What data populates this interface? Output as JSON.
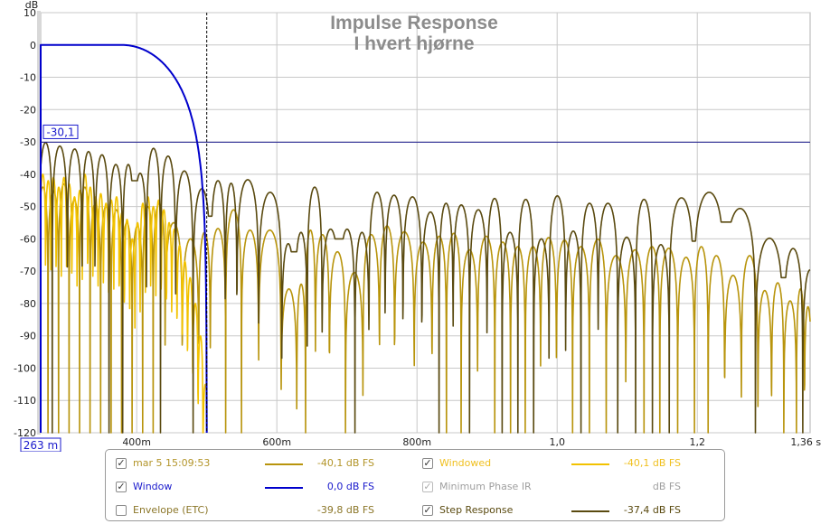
{
  "chart_data": {
    "type": "line",
    "title": "Impulse Response",
    "subtitle": "I hvert hjørne",
    "ylabel": "dB",
    "xlabel": "",
    "xlim": [
      0.263,
      1.361
    ],
    "ylim": [
      -120,
      10
    ],
    "grid": true,
    "y_ticks": [
      10,
      0,
      -10,
      -20,
      -30,
      -40,
      -50,
      -60,
      -70,
      -80,
      -90,
      -100,
      -110,
      -120
    ],
    "y_tick_labels": [
      "10",
      "0",
      "-10",
      "-20",
      "-30",
      "-40",
      "-50",
      "-60",
      "-70",
      "-80",
      "-90",
      "-100",
      "-110",
      "-120"
    ],
    "x_ticks": [
      0.4,
      0.6,
      0.8,
      1.0,
      1.2,
      1.36
    ],
    "x_tick_labels": [
      "400m",
      "600m",
      "800m",
      "1,0",
      "1,2",
      "1,36 s"
    ],
    "cursor_y_label": "-30,1",
    "cursor_y_value": -30.1,
    "cursor_x_label": "263 m",
    "cursor_x_value": 0.263,
    "marker_x_value": 0.5,
    "colors": {
      "grid": "#c8c8c8",
      "cursor": "#1a1a8c",
      "title": "#8c8c8c"
    },
    "series": [
      {
        "name": "mar 5 15:09:53",
        "color": "#b8940c",
        "peaks": [
          [
            0.266,
            -44
          ],
          [
            0.281,
            -45
          ],
          [
            0.296,
            -43
          ],
          [
            0.311,
            -48
          ],
          [
            0.326,
            -44
          ],
          [
            0.341,
            -49
          ],
          [
            0.356,
            -50
          ],
          [
            0.371,
            -51
          ],
          [
            0.386,
            -55
          ],
          [
            0.401,
            -56
          ],
          [
            0.416,
            -50
          ],
          [
            0.431,
            -49
          ],
          [
            0.45,
            -55
          ],
          [
            0.48,
            -60
          ],
          [
            0.497,
            -58
          ],
          [
            0.513,
            -56.8
          ],
          [
            0.541,
            -51
          ],
          [
            0.558,
            -57.3
          ],
          [
            0.59,
            -57.3
          ],
          [
            0.622,
            -75.5
          ],
          [
            0.635,
            -74
          ],
          [
            0.647,
            -57.3
          ],
          [
            0.663,
            -58.7
          ],
          [
            0.687,
            -64
          ],
          [
            0.709,
            -70.4
          ],
          [
            0.737,
            -58.7
          ],
          [
            0.756,
            -56
          ],
          [
            0.78,
            -57.8
          ],
          [
            0.812,
            -61
          ],
          [
            0.831,
            -59.2
          ],
          [
            0.853,
            -58.3
          ],
          [
            0.873,
            -63.4
          ],
          [
            0.9,
            -59.2
          ],
          [
            0.922,
            -61
          ],
          [
            0.945,
            -62.4
          ],
          [
            0.964,
            -62.4
          ],
          [
            0.989,
            -59.6
          ],
          [
            1.009,
            -60.4
          ],
          [
            1.035,
            -62.4
          ],
          [
            1.057,
            -60.1
          ],
          [
            1.083,
            -65.2
          ],
          [
            1.113,
            -63.4
          ],
          [
            1.135,
            -62.4
          ],
          [
            1.158,
            -62.9
          ],
          [
            1.186,
            -65.7
          ],
          [
            1.206,
            -62.4
          ],
          [
            1.225,
            -65.2
          ],
          [
            1.253,
            -71.3
          ],
          [
            1.273,
            -65.2
          ],
          [
            1.3,
            -76
          ],
          [
            1.312,
            -73.6
          ],
          [
            1.335,
            -79.2
          ],
          [
            1.348,
            -75.5
          ],
          [
            1.358,
            -81
          ]
        ]
      },
      {
        "name": "Windowed",
        "color": "#f2c200",
        "end": 0.5,
        "peaks": [
          [
            0.266,
            -40
          ],
          [
            0.274,
            -42
          ],
          [
            0.281,
            -41
          ],
          [
            0.289,
            -44
          ],
          [
            0.296,
            -41
          ],
          [
            0.304,
            -43
          ],
          [
            0.311,
            -47
          ],
          [
            0.319,
            -45
          ],
          [
            0.326,
            -40
          ],
          [
            0.334,
            -44
          ],
          [
            0.341,
            -47
          ],
          [
            0.349,
            -46
          ],
          [
            0.356,
            -49
          ],
          [
            0.364,
            -48
          ],
          [
            0.371,
            -47
          ],
          [
            0.379,
            -52
          ],
          [
            0.386,
            -54
          ],
          [
            0.394,
            -60
          ],
          [
            0.401,
            -55
          ],
          [
            0.409,
            -49
          ],
          [
            0.416,
            -47
          ],
          [
            0.424,
            -50
          ],
          [
            0.431,
            -48
          ],
          [
            0.439,
            -51
          ],
          [
            0.446,
            -55
          ],
          [
            0.454,
            -57
          ],
          [
            0.461,
            -62
          ],
          [
            0.469,
            -67
          ],
          [
            0.476,
            -72
          ],
          [
            0.484,
            -80
          ],
          [
            0.491,
            -90
          ],
          [
            0.498,
            -105
          ]
        ]
      },
      {
        "name": "Step Response",
        "color": "#5a4a10",
        "peaks": [
          [
            0.27,
            -30.2
          ],
          [
            0.289,
            -31.3
          ],
          [
            0.313,
            -32.2
          ],
          [
            0.331,
            -33
          ],
          [
            0.35,
            -34
          ],
          [
            0.371,
            -37
          ],
          [
            0.389,
            -37
          ],
          [
            0.403,
            -39.7,
            -42
          ],
          [
            0.425,
            -32
          ],
          [
            0.443,
            -34.4
          ],
          [
            0.468,
            -39
          ],
          [
            0.493,
            -44.5
          ],
          [
            0.518,
            -42,
            -53
          ],
          [
            0.535,
            -42.8
          ],
          [
            0.551,
            -41.7
          ],
          [
            0.597,
            -45.6
          ],
          [
            0.617,
            -61.5
          ],
          [
            0.634,
            -58,
            -64
          ],
          [
            0.653,
            -44
          ],
          [
            0.676,
            -57
          ],
          [
            0.702,
            -57,
            -60
          ],
          [
            0.721,
            -58
          ],
          [
            0.742,
            -45.6
          ],
          [
            0.767,
            -46.5
          ],
          [
            0.793,
            -47
          ],
          [
            0.821,
            -51.7
          ],
          [
            0.842,
            -49
          ],
          [
            0.861,
            -49.5
          ],
          [
            0.889,
            -51
          ],
          [
            0.911,
            -47.5
          ],
          [
            0.932,
            -58
          ],
          [
            0.956,
            -47.8
          ],
          [
            0.977,
            -60
          ],
          [
            1.0,
            -46.7
          ],
          [
            1.024,
            -57.6
          ],
          [
            1.044,
            -49
          ],
          [
            1.073,
            -49
          ],
          [
            1.1,
            -59.5
          ],
          [
            1.124,
            -47.8
          ],
          [
            1.148,
            -61.8
          ],
          [
            1.172,
            -47.3
          ],
          [
            1.218,
            -45.6,
            -60.7
          ],
          [
            1.26,
            -50.6,
            -54.8
          ],
          [
            1.306,
            -59.8
          ],
          [
            1.34,
            -63,
            -72
          ],
          [
            1.361,
            -69.6
          ]
        ]
      },
      {
        "name": "Window",
        "color": "#0000cc",
        "flat_db": 0,
        "taper_start": 0.379,
        "taper_end": 0.5
      }
    ]
  },
  "legend": {
    "items": [
      {
        "label": "mar 5 15:09:53",
        "value": "-40,1 dB FS",
        "checked": true,
        "text_color": "#b3952a",
        "line_color": "#b8940c"
      },
      {
        "label": "Window",
        "value": "0,0 dB FS",
        "checked": true,
        "text_color": "#1a1acc",
        "line_color": "#0000cc"
      },
      {
        "label": "Envelope (ETC)",
        "value": "-39,8 dB FS",
        "checked": false,
        "text_color": "#8b7628",
        "line_color": ""
      },
      {
        "label": "Windowed",
        "value": "-40,1 dB FS",
        "checked": true,
        "text_color": "#f0c020",
        "line_color": "#f2c200"
      },
      {
        "label": "Minimum Phase IR",
        "value": "dB FS",
        "checked": true,
        "disabled": true,
        "text_color": "#a0a0a0",
        "line_color": ""
      },
      {
        "label": "Step Response",
        "value": "-37,4 dB FS",
        "checked": true,
        "text_color": "#5a4a10",
        "line_color": "#5a4a10"
      }
    ]
  }
}
